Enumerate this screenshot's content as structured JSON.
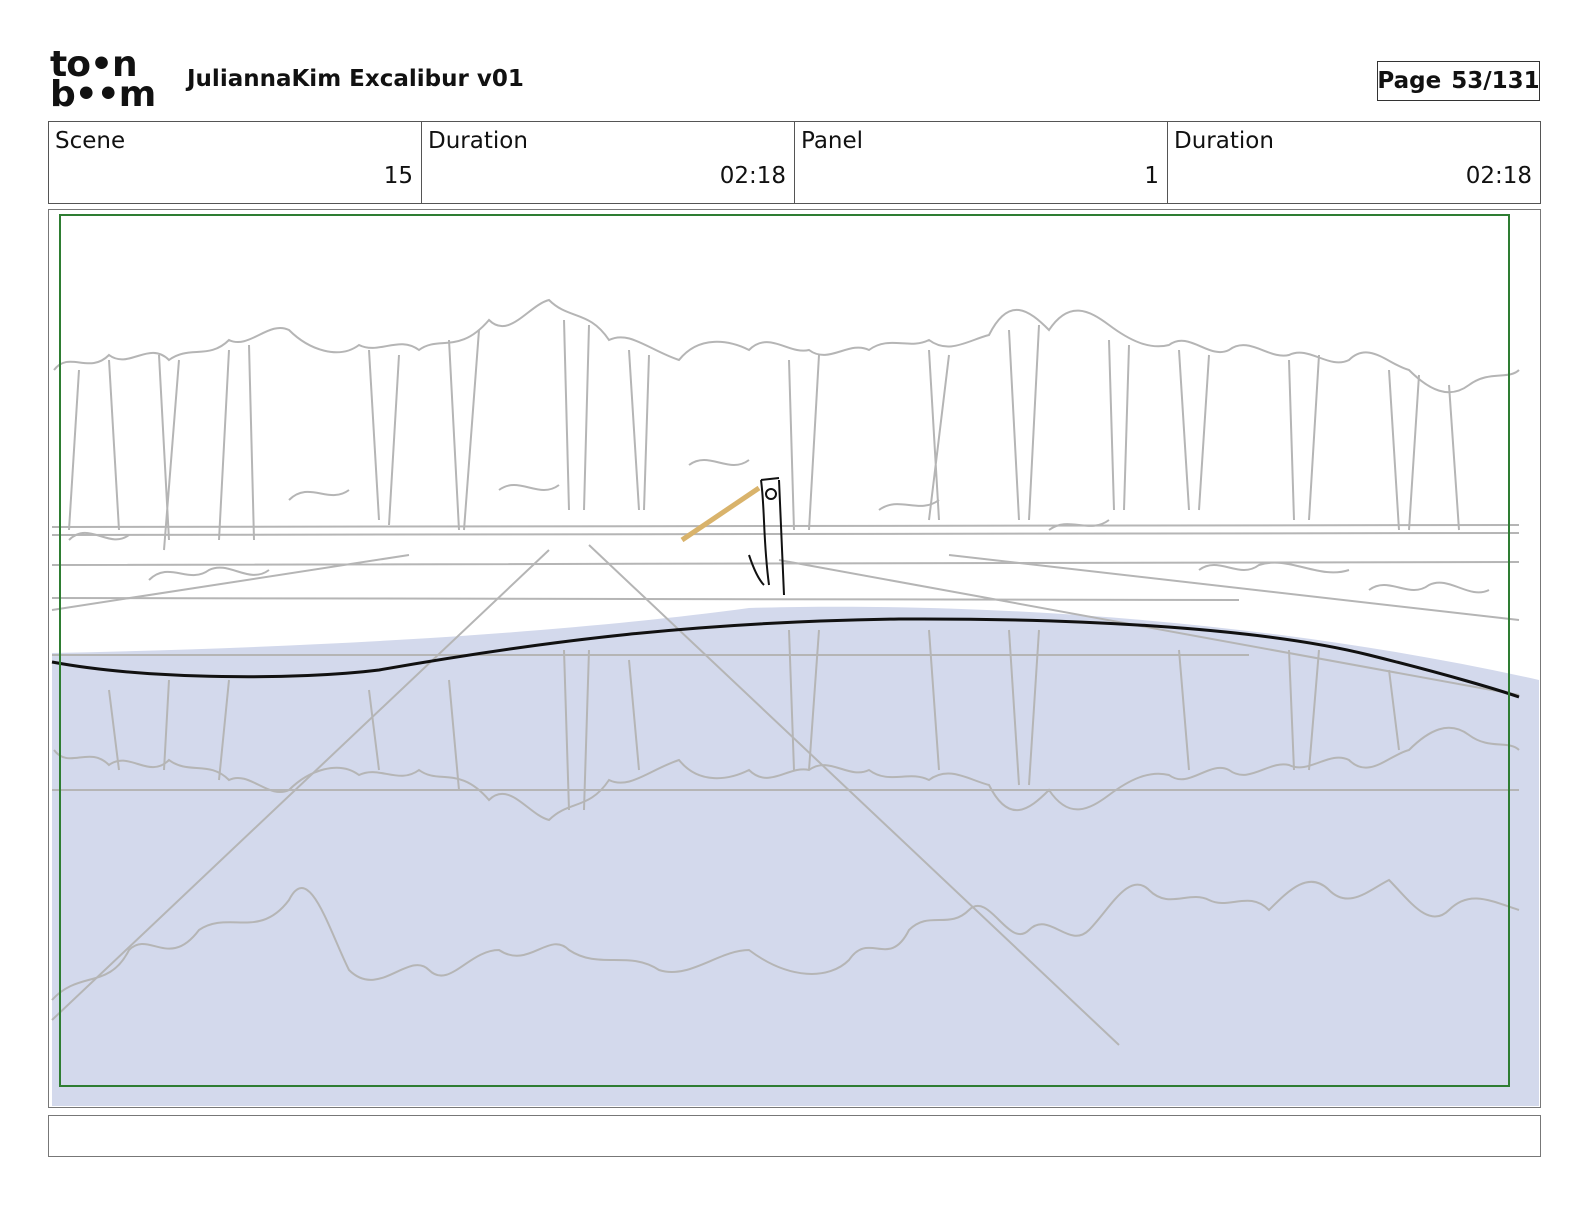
{
  "header": {
    "logo_line1": "to•n",
    "logo_line2": "b••m",
    "title": "JuliannaKim Excalibur v01",
    "page_label": "Page",
    "page_value": "53/131"
  },
  "info": {
    "scene_label": "Scene",
    "scene_value": "15",
    "scene_duration_label": "Duration",
    "scene_duration_value": "02:18",
    "panel_label": "Panel",
    "panel_value": "1",
    "panel_duration_label": "Duration",
    "panel_duration_value": "02:18"
  },
  "colors": {
    "safe_frame": "#2e7d32",
    "water": "#d3d9ec",
    "sketch": "#b5b5b5",
    "ink": "#111111",
    "sword": "#d9b36b"
  },
  "notes": ""
}
